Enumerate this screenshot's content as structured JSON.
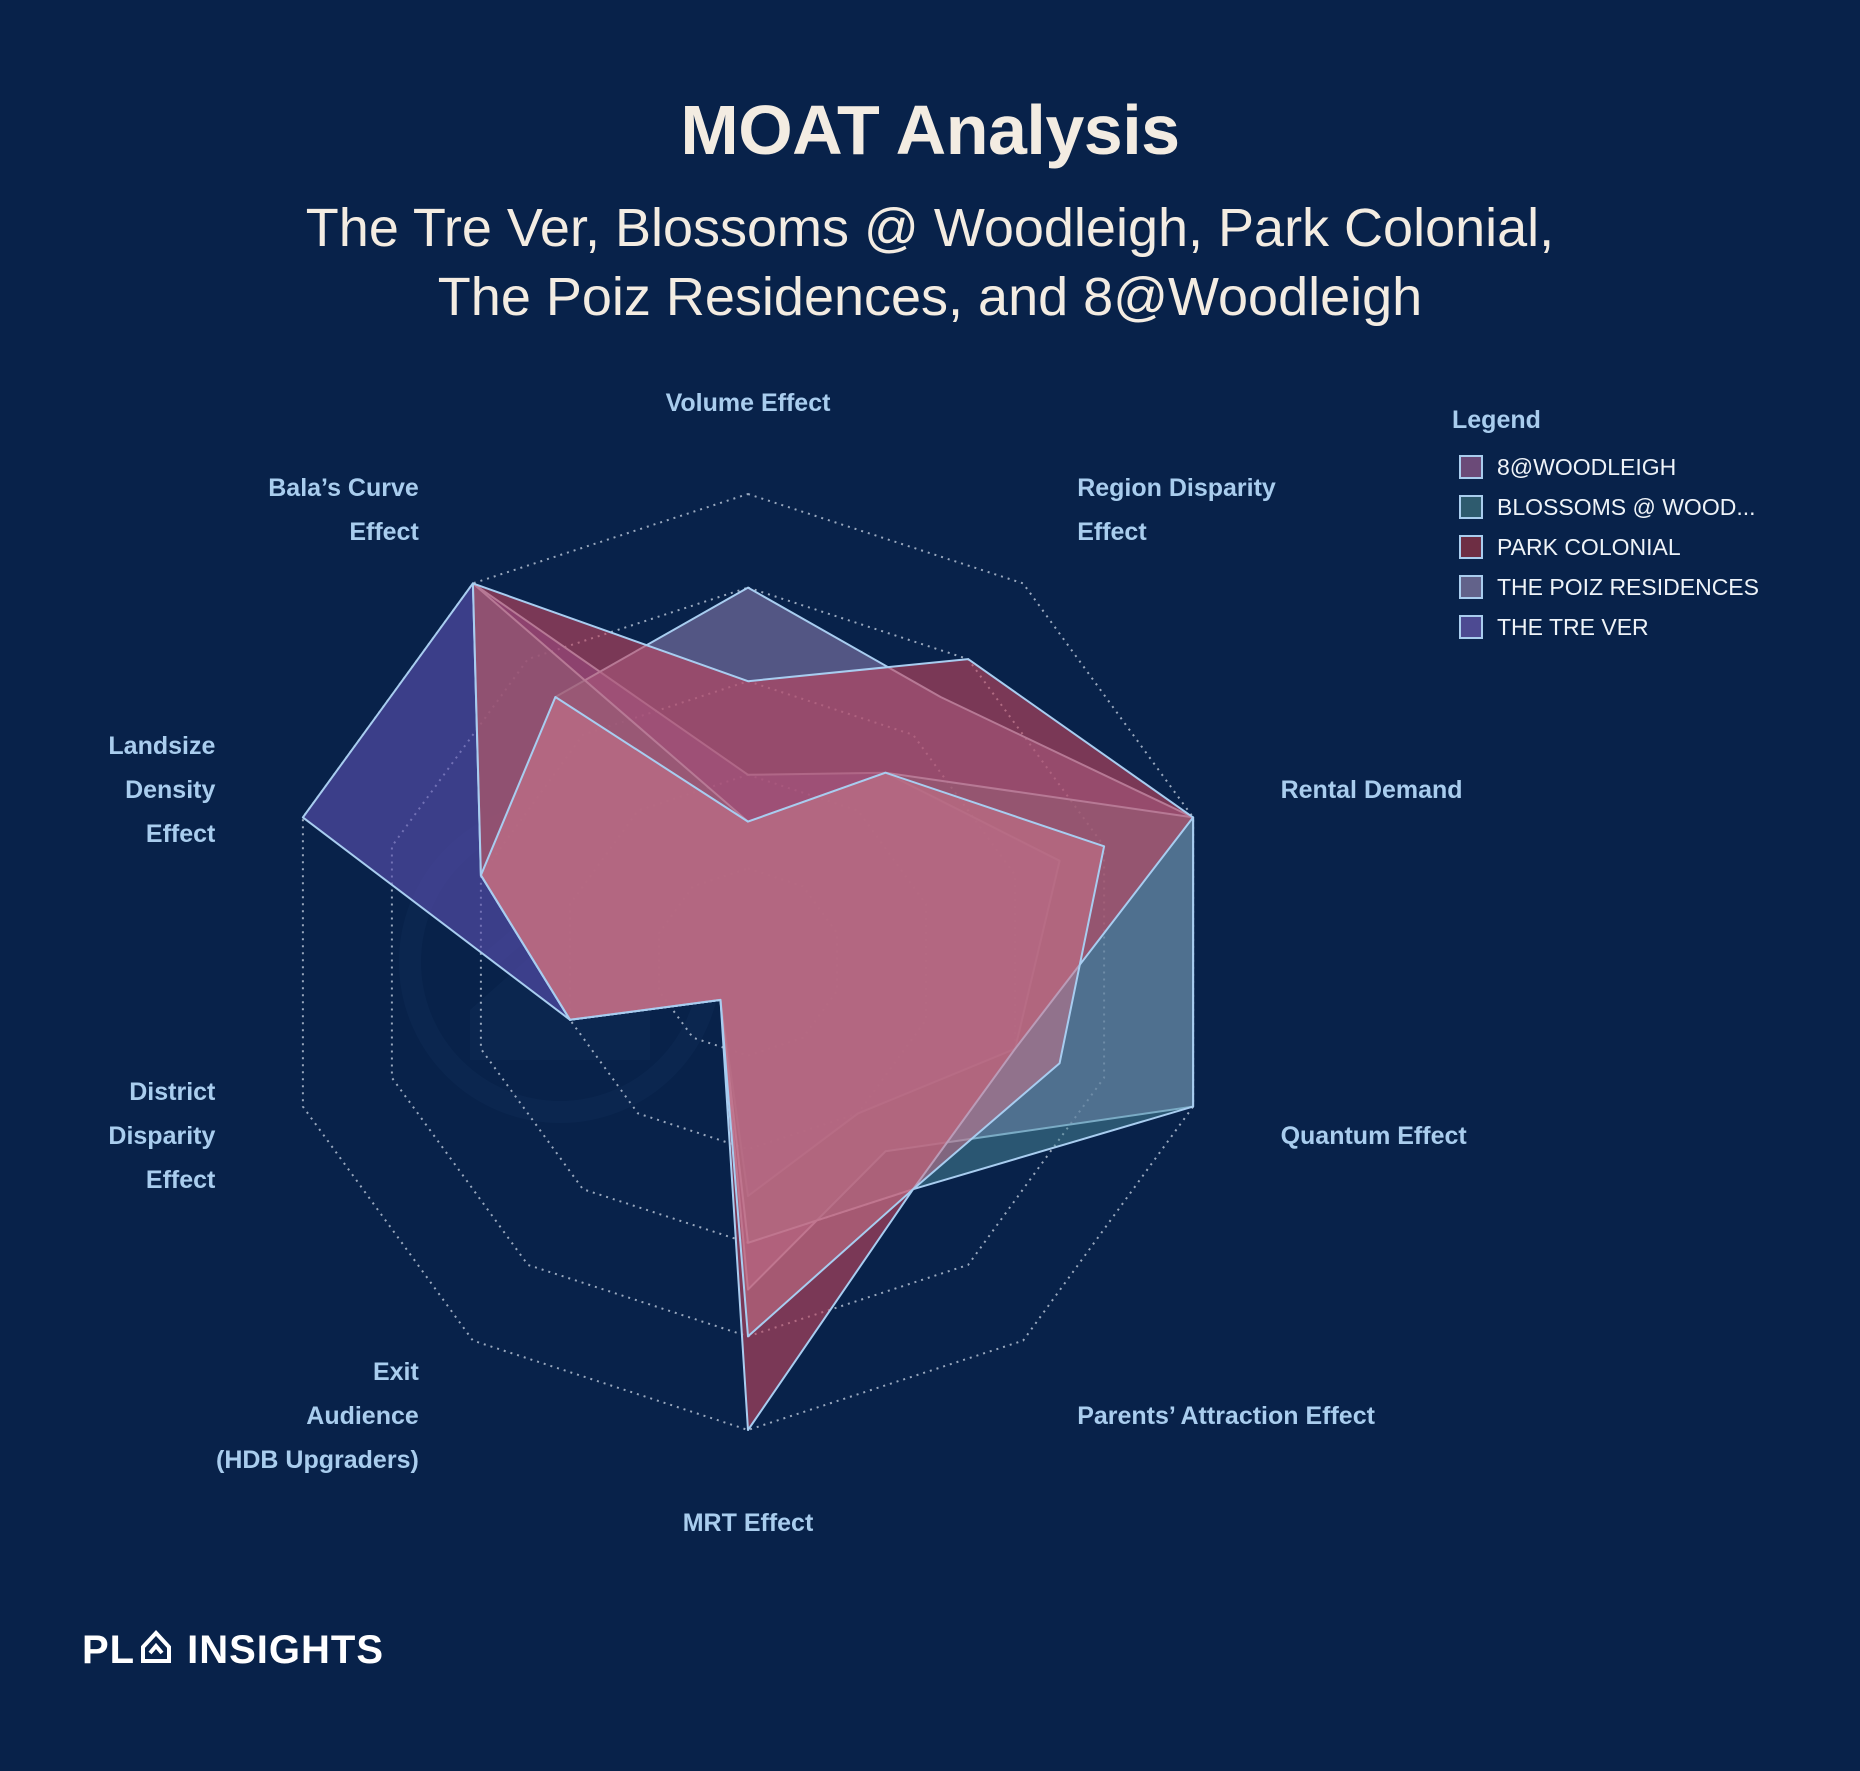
{
  "header": {
    "title": "MOAT Analysis",
    "subtitle_line1": "The Tre Ver, Blossoms @ Woodleigh, Park Colonial,",
    "subtitle_line2": "The Poiz Residences, and 8@Woodleigh"
  },
  "legend": {
    "title": "Legend",
    "items": [
      {
        "label": "8@WOODLEIGH",
        "color": "#6b4a78"
      },
      {
        "label": "BLOSSOMS @ WOOD...",
        "color": "#2e5b6e"
      },
      {
        "label": "PARK COLONIAL",
        "color": "#6e2e44"
      },
      {
        "label": "THE POIZ RESIDENCES",
        "color": "#62628a"
      },
      {
        "label": "THE TRE VER",
        "color": "#4d4a92"
      }
    ]
  },
  "brand": {
    "left": "PL",
    "right": "INSIGHTS",
    "icon": "house-arrow-icon"
  },
  "chart_data": {
    "type": "radar",
    "title": "MOAT Analysis",
    "axes": [
      {
        "name": "Volume Effect",
        "lines": [
          "Volume Effect"
        ]
      },
      {
        "name": "Region Disparity Effect",
        "lines": [
          "Region Disparity",
          "Effect"
        ]
      },
      {
        "name": "Rental Demand",
        "lines": [
          "Rental Demand"
        ]
      },
      {
        "name": "Quantum Effect",
        "lines": [
          "Quantum Effect"
        ]
      },
      {
        "name": "Parents' Attraction Effect",
        "lines": [
          "Parents’ Attraction Effect"
        ]
      },
      {
        "name": "MRT Effect",
        "lines": [
          "MRT Effect"
        ]
      },
      {
        "name": "Exit Audience (HDB Upgraders)",
        "lines": [
          "Exit",
          "Audience",
          "(HDB Upgraders)"
        ]
      },
      {
        "name": "District Disparity Effect",
        "lines": [
          "District",
          "Disparity",
          "Effect"
        ]
      },
      {
        "name": "Landsize Density Effect",
        "lines": [
          "Landsize",
          "Density",
          "Effect"
        ]
      },
      {
        "name": "Bala's Curve Effect",
        "lines": [
          "Bala’s Curve",
          "Effect"
        ]
      }
    ],
    "max": 5,
    "rings": [
      1,
      2,
      3,
      4,
      5
    ],
    "series": [
      {
        "name": "THE TRE VER",
        "fill": "#5a4fb0",
        "opacity": 0.62,
        "values": [
          2,
          2.5,
          3.5,
          3,
          2,
          2.5,
          0.5,
          2,
          5,
          5
        ]
      },
      {
        "name": "THE POIZ RESIDENCES",
        "fill": "#8a7cae",
        "opacity": 0.58,
        "values": [
          4,
          3.5,
          5,
          5,
          2.5,
          3.5,
          0.5,
          2,
          3,
          3.5
        ]
      },
      {
        "name": "BLOSSOMS @ WOOD...",
        "fill": "#4b8a99",
        "opacity": 0.5,
        "values": [
          1.5,
          2.5,
          5,
          5,
          3,
          3,
          0.5,
          2,
          3,
          5
        ]
      },
      {
        "name": "PARK COLONIAL",
        "fill": "#c0465e",
        "opacity": 0.62,
        "values": [
          3,
          4,
          5,
          3,
          3,
          5,
          0.5,
          2,
          3,
          5
        ]
      },
      {
        "name": "8@WOODLEIGH",
        "fill": "#c8758a",
        "opacity": 0.55,
        "values": [
          1.5,
          2.5,
          4,
          3.5,
          3,
          4,
          0.5,
          2,
          3,
          3.5
        ]
      }
    ]
  }
}
